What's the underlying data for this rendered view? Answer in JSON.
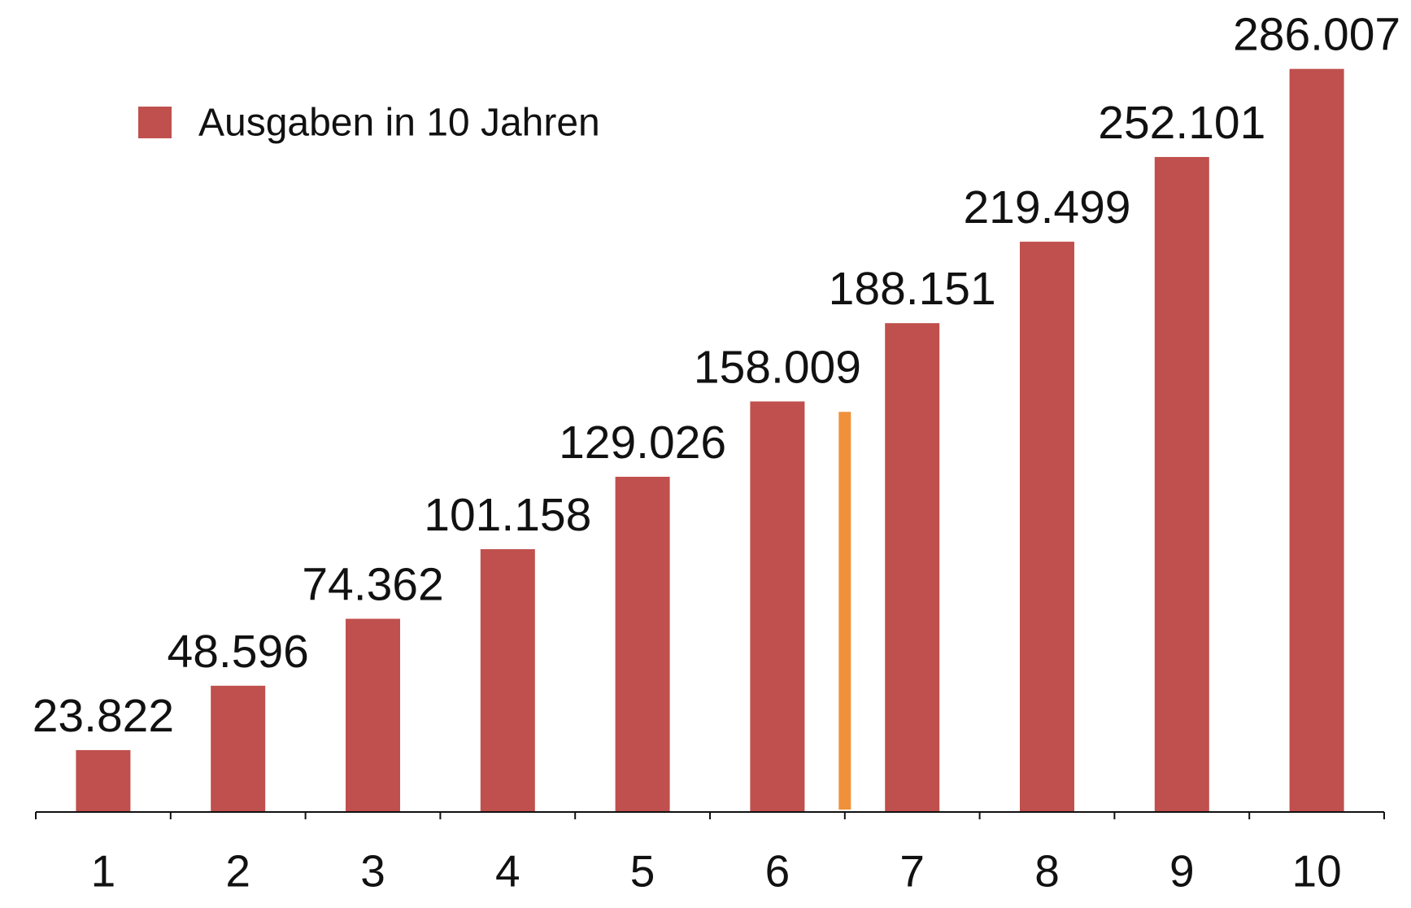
{
  "chart_data": {
    "type": "bar",
    "categories": [
      "1",
      "2",
      "3",
      "4",
      "5",
      "6",
      "7",
      "8",
      "9",
      "10"
    ],
    "series": [
      {
        "name": "Ausgaben in 10 Jahren",
        "color": "#c0504d",
        "values": [
          23822,
          48596,
          74362,
          101158,
          129026,
          158009,
          188151,
          219499,
          252101,
          286007
        ],
        "value_labels": [
          "23.822",
          "48.596",
          "74.362",
          "101.158",
          "129.026",
          "158.009",
          "188.151",
          "219.499",
          "252.101",
          "286.007"
        ]
      }
    ],
    "highlight": {
      "value": 154000,
      "color": "#f0913a"
    },
    "ylim": [
      0,
      300000
    ],
    "legend": "top-left"
  }
}
